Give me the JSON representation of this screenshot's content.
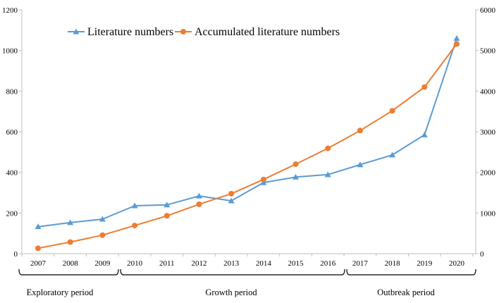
{
  "chart_data": {
    "type": "line",
    "categories": [
      "2007",
      "2008",
      "2009",
      "2010",
      "2011",
      "2012",
      "2013",
      "2014",
      "2015",
      "2016",
      "2017",
      "2018",
      "2019",
      "2020"
    ],
    "series": [
      {
        "name": "Literature numbers",
        "axis": "left",
        "color": "#5b9bd5",
        "marker": "triangle",
        "values": [
          133,
          153,
          170,
          236,
          240,
          284,
          260,
          350,
          377,
          389,
          438,
          486,
          585,
          1060
        ]
      },
      {
        "name": "Accumulated literature numbers",
        "axis": "right",
        "color": "#ed7d31",
        "marker": "circle",
        "values": [
          133,
          286,
          456,
          692,
          932,
          1216,
          1476,
          1826,
          2203,
          2592,
          3030,
          3516,
          4101,
          5161
        ]
      }
    ],
    "y_left": {
      "min": 0,
      "max": 1200,
      "ticks": [
        "0",
        "200",
        "400",
        "600",
        "800",
        "1000",
        "1200"
      ]
    },
    "y_right": {
      "min": 0,
      "max": 6000,
      "ticks": [
        "0",
        "1000",
        "2000",
        "3000",
        "4000",
        "5000",
        "6000"
      ]
    },
    "legend": {
      "placement": "top-left",
      "entries": [
        "Literature numbers",
        "Accumulated literature numbers"
      ]
    },
    "periods": [
      {
        "label": "Exploratory period",
        "from": "2007",
        "to": "2009"
      },
      {
        "label": "Growth period",
        "from": "2010",
        "to": "2016"
      },
      {
        "label": "Outbreak period",
        "from": "2017",
        "to": "2020"
      }
    ],
    "grid": false
  }
}
